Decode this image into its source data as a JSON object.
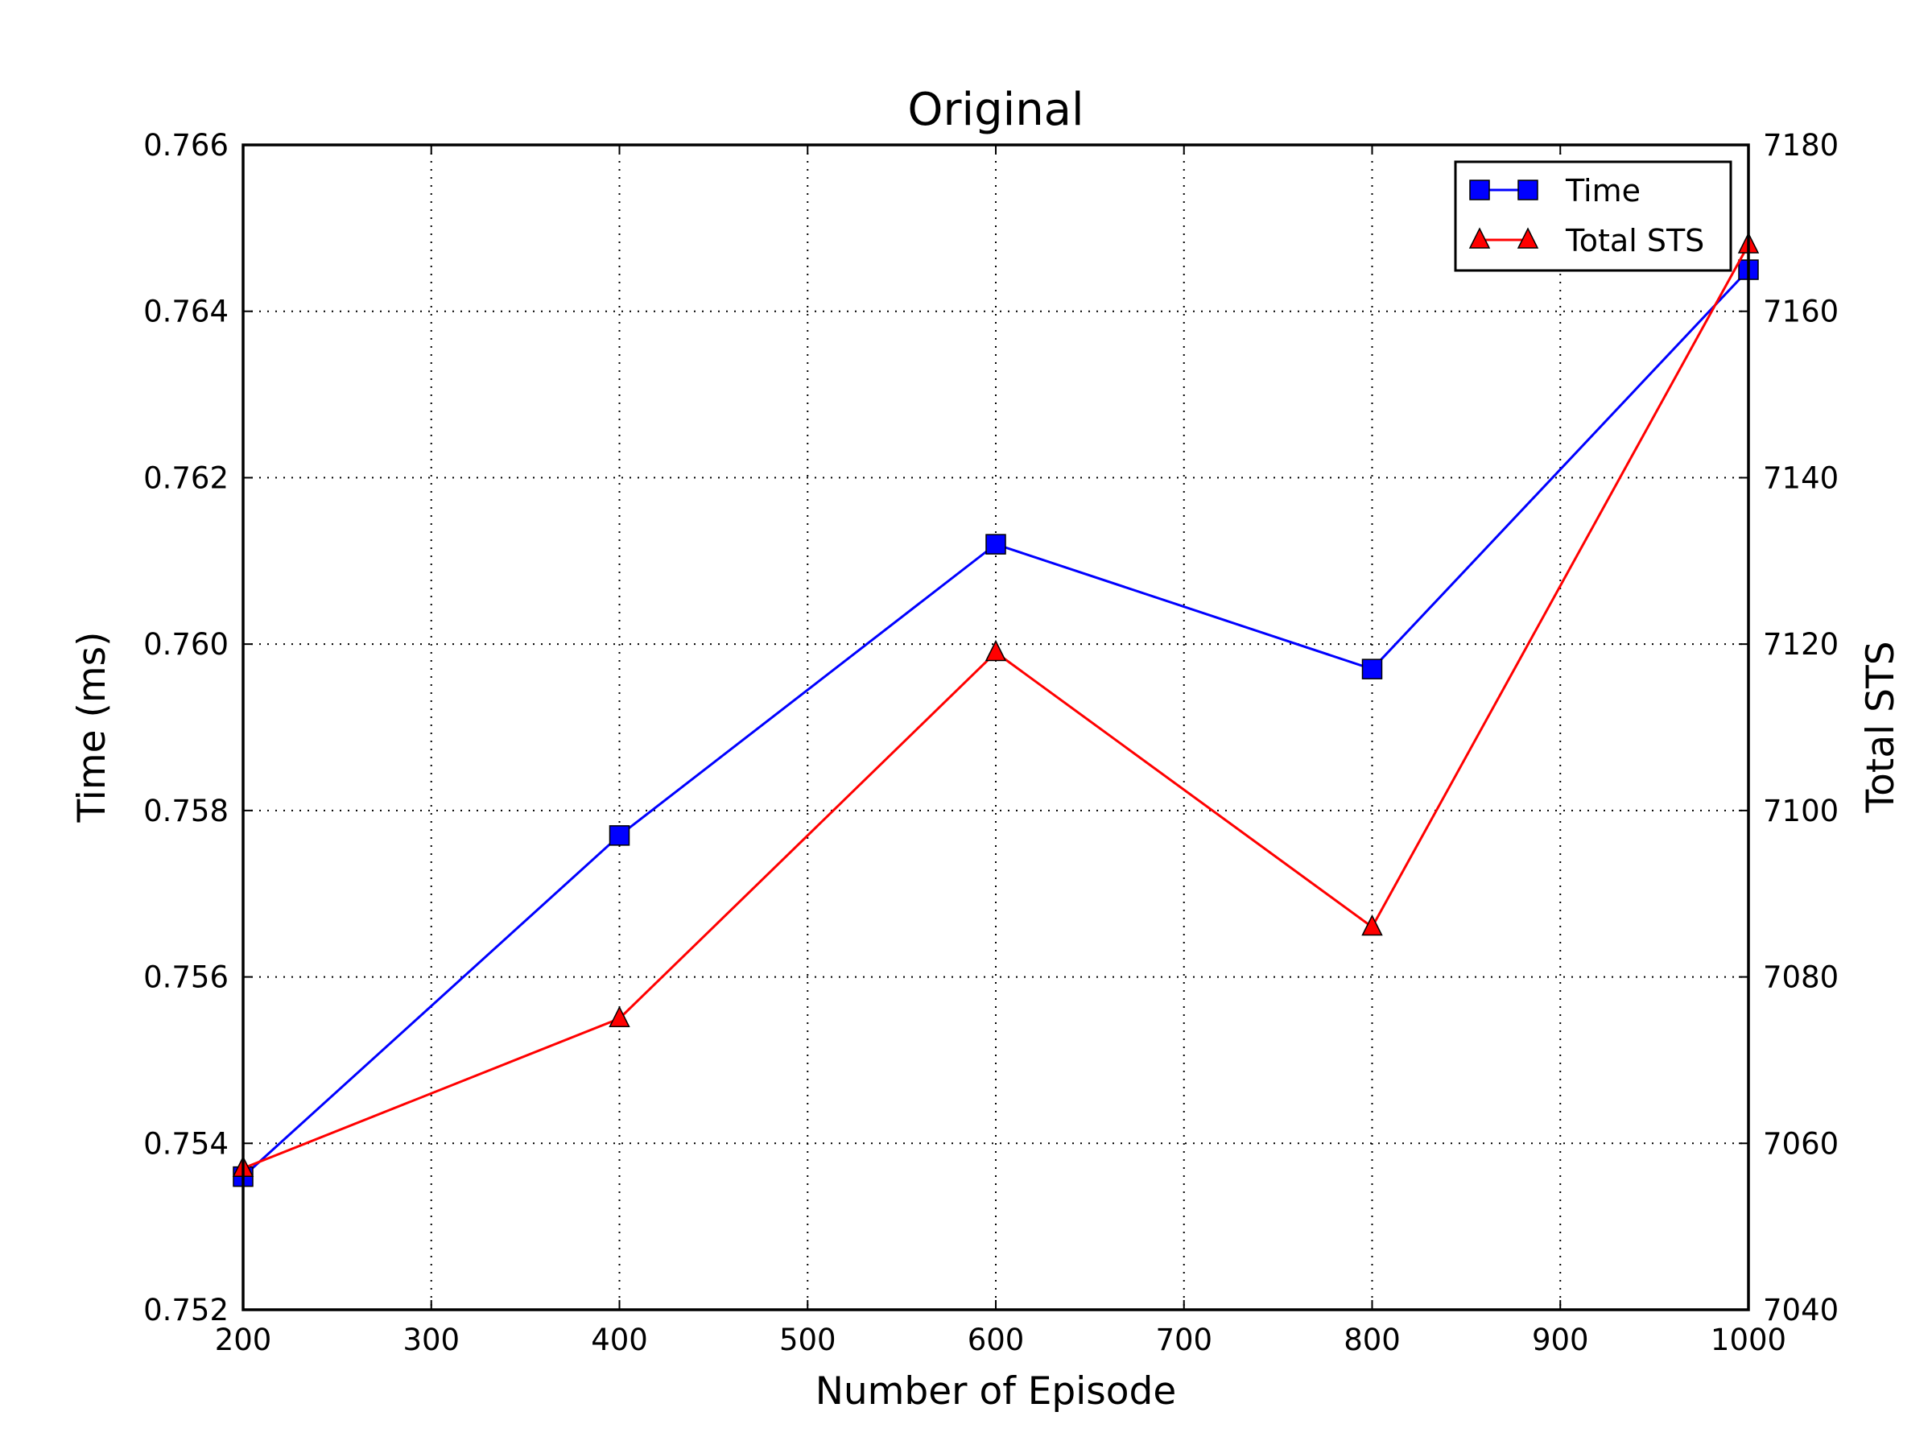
{
  "chart_data": {
    "type": "line",
    "title": "Original",
    "xlabel": "Number of Episode",
    "ylabel": "Time (ms)",
    "y2label": "Total STS",
    "xlim": [
      200,
      1000
    ],
    "ylim": [
      0.752,
      0.766
    ],
    "y2lim": [
      7040,
      7180
    ],
    "xticks": [
      "200",
      "300",
      "400",
      "500",
      "600",
      "700",
      "800",
      "900",
      "1000"
    ],
    "yticks": [
      "0.752",
      "0.754",
      "0.756",
      "0.758",
      "0.760",
      "0.762",
      "0.764",
      "0.766"
    ],
    "y2ticks": [
      "7040",
      "7060",
      "7080",
      "7100",
      "7120",
      "7140",
      "7160",
      "7180"
    ],
    "grid": true,
    "legend_position": "top-right",
    "x": [
      200,
      400,
      600,
      800,
      1000
    ],
    "series": [
      {
        "name": "Time",
        "axis": "left",
        "color": "#0000ff",
        "marker": "square",
        "values": [
          0.7536,
          0.7577,
          0.7612,
          0.7597,
          0.7645
        ]
      },
      {
        "name": "Total STS",
        "axis": "right",
        "color": "#ff0000",
        "marker": "triangle",
        "values": [
          7057,
          7075,
          7119,
          7086,
          7168
        ]
      }
    ]
  }
}
